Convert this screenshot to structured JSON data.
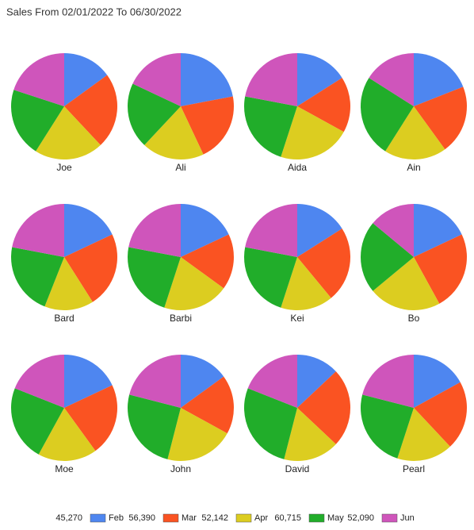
{
  "chart_data": {
    "type": "pie",
    "title": "Sales From 02/01/2022 To 06/30/2022",
    "categories": [
      "Joe",
      "Ali",
      "Aida",
      "Ain",
      "Bard",
      "Barbi",
      "Kei",
      "Bo",
      "Moe",
      "John",
      "David",
      "Pearl"
    ],
    "series": [
      {
        "name": "Feb",
        "color": "#4e86f0",
        "total": {
          "value": 45270,
          "label": "45,270"
        },
        "values": [
          15,
          22,
          16,
          19,
          18,
          18,
          16,
          18,
          18,
          15,
          13,
          17
        ]
      },
      {
        "name": "Mar",
        "color": "#fa5322",
        "total": {
          "value": 56390,
          "label": "56,390"
        },
        "values": [
          23,
          21,
          17,
          21,
          23,
          17,
          23,
          24,
          22,
          18,
          24,
          21
        ]
      },
      {
        "name": "Apr",
        "color": "#dccd20",
        "total": {
          "value": 52142,
          "label": "52,142"
        },
        "values": [
          21,
          19,
          22,
          19,
          15,
          20,
          16,
          22,
          18,
          21,
          17,
          17
        ]
      },
      {
        "name": "May",
        "color": "#21ad2a",
        "total": {
          "value": 60715,
          "label": "60,715"
        },
        "values": [
          21,
          20,
          23,
          25,
          22,
          23,
          23,
          22,
          23,
          25,
          27,
          24
        ]
      },
      {
        "name": "Jun",
        "color": "#cf55bb",
        "total": {
          "value": 52090,
          "label": "52,090"
        },
        "values": [
          20,
          18,
          22,
          16,
          22,
          22,
          22,
          14,
          19,
          21,
          19,
          21
        ]
      }
    ]
  }
}
